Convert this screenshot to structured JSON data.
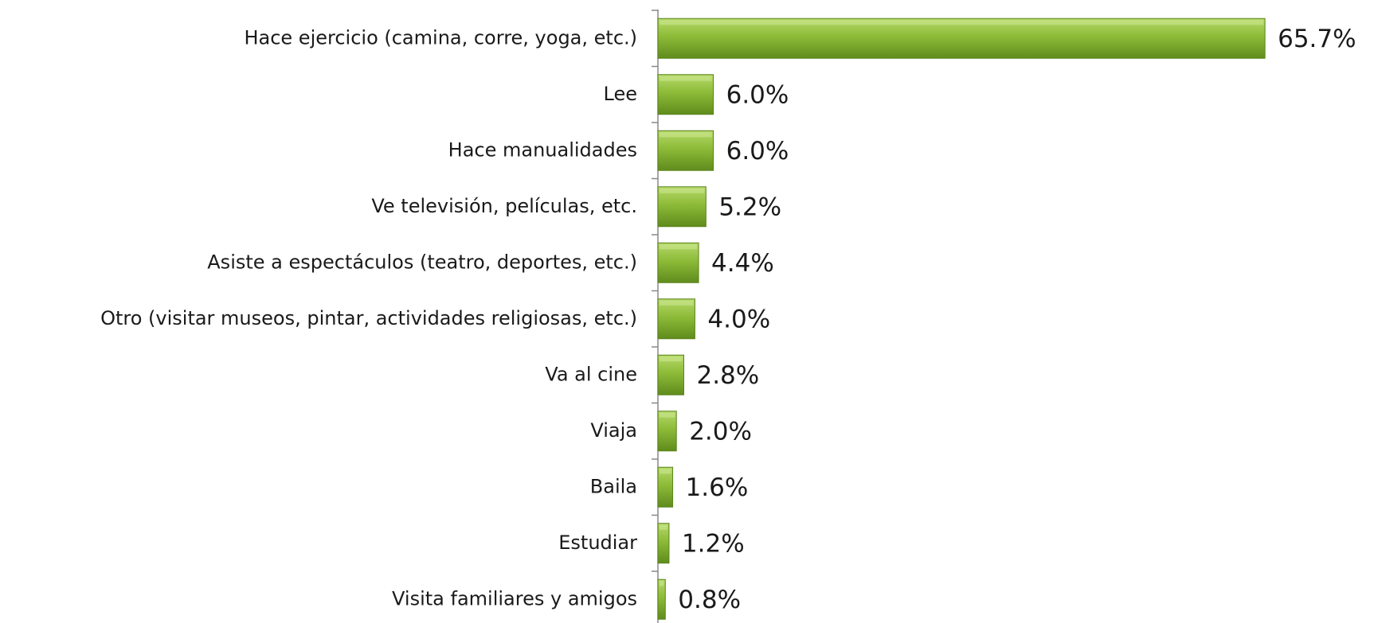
{
  "chart_data": {
    "type": "bar",
    "orientation": "horizontal",
    "color": "#8dbb38",
    "categories": [
      "Hace ejercicio (camina, corre, yoga, etc.)",
      "Lee",
      "Hace manualidades",
      "Ve televisión, películas, etc.",
      "Asiste a espectáculos (teatro, deportes, etc.)",
      "Otro (visitar museos, pintar, actividades religiosas, etc.)",
      "Va al cine",
      "Viaja",
      "Baila",
      "Estudiar",
      "Visita familiares y amigos"
    ],
    "values": [
      65.7,
      6.0,
      6.0,
      5.2,
      4.4,
      4.0,
      2.8,
      2.0,
      1.6,
      1.2,
      0.8
    ],
    "value_labels": [
      "65.7%",
      "6.0%",
      "6.0%",
      "5.2%",
      "4.4%",
      "4.0%",
      "2.8%",
      "2.0%",
      "1.6%",
      "1.2%",
      "0.8%"
    ]
  }
}
